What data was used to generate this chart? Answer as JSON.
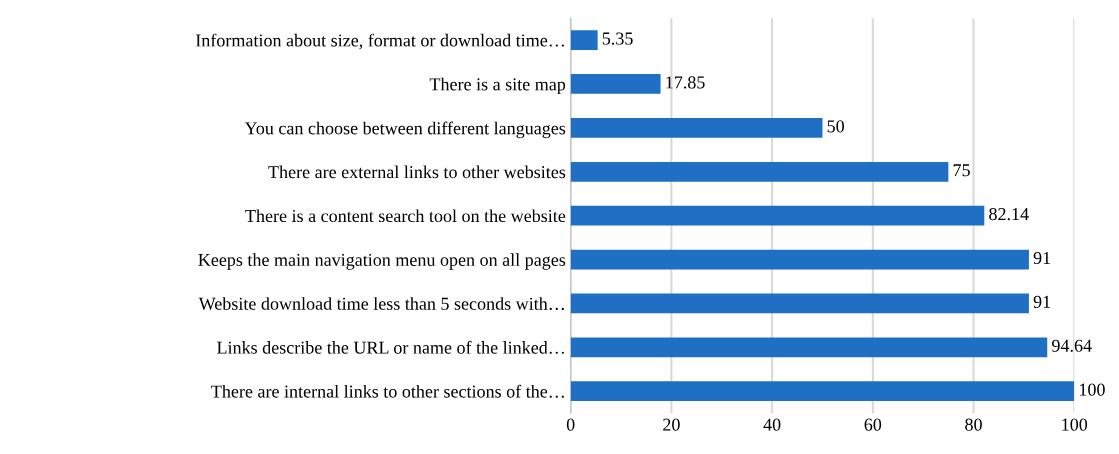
{
  "chart_data": {
    "type": "bar",
    "orientation": "horizontal",
    "categories": [
      "Information about size, format or download time…",
      "There is a site map",
      "You can choose between different languages",
      "There are external links to other websites",
      "There is a content search tool on the website",
      "Keeps the main navigation menu open on all pages",
      "Website download time less than 5 seconds with…",
      "Links describe the URL or name of the linked…",
      "There are internal links to other sections of the…"
    ],
    "values": [
      5.35,
      17.85,
      50,
      75,
      82.14,
      91,
      91,
      94.64,
      100
    ],
    "color": "#1f6fc5",
    "xlim": [
      0,
      100
    ],
    "xticks": [
      0,
      20,
      40,
      60,
      80,
      100
    ],
    "grid": "x",
    "data_labels": true
  }
}
